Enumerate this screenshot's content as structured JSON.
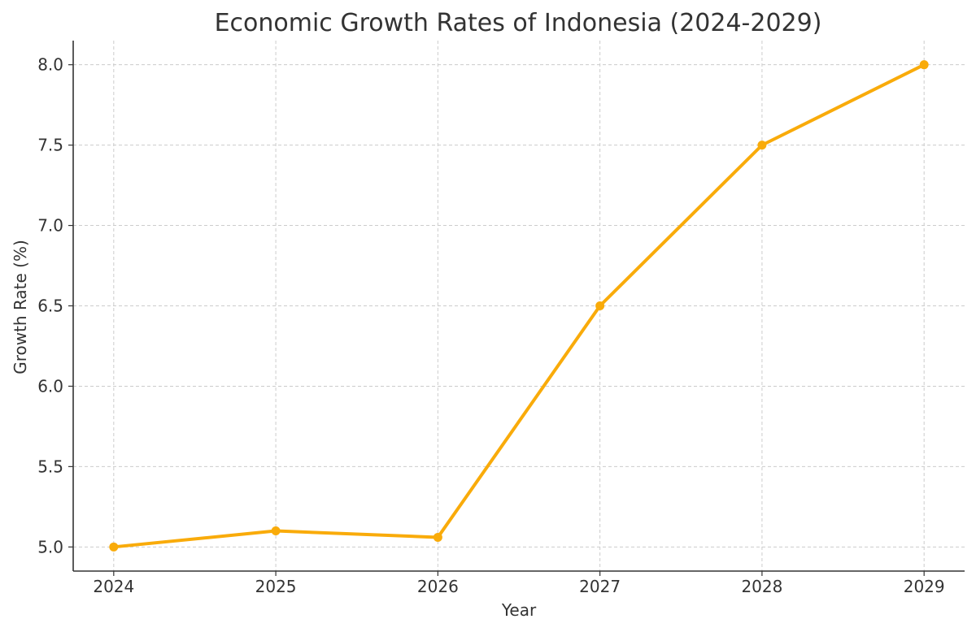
{
  "chart_data": {
    "type": "line",
    "title": "Economic Growth Rates of Indonesia (2024-2029)",
    "xlabel": "Year",
    "ylabel": "Growth Rate (%)",
    "x": [
      2024,
      2025,
      2026,
      2027,
      2028,
      2029
    ],
    "x_tick_labels": [
      "2024",
      "2025",
      "2026",
      "2027",
      "2028",
      "2029"
    ],
    "y_ticks": [
      5.0,
      5.5,
      6.0,
      6.5,
      7.0,
      7.5,
      8.0
    ],
    "y_tick_labels": [
      "5.0",
      "5.5",
      "6.0",
      "6.5",
      "7.0",
      "7.5",
      "8.0"
    ],
    "ylim": [
      4.85,
      8.15
    ],
    "xlim": [
      2023.75,
      2029.25
    ],
    "grid": true,
    "marker": "circle",
    "series": [
      {
        "values": [
          5.0,
          5.1,
          5.06,
          6.5,
          7.5,
          8.0
        ],
        "color": "#f9ab0a"
      }
    ]
  }
}
